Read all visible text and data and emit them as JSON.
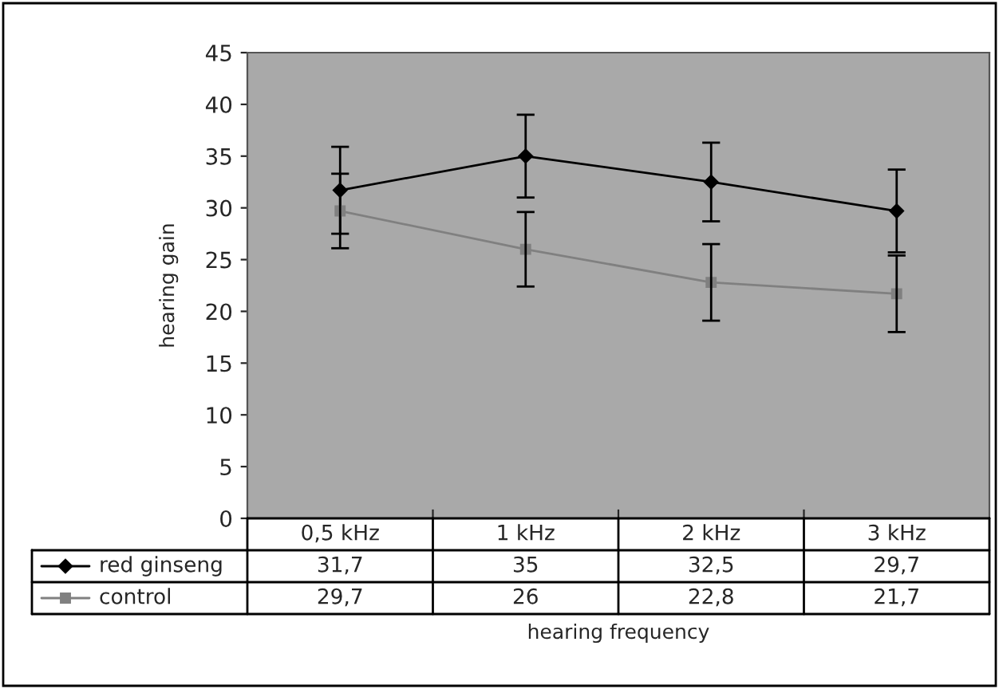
{
  "chart_data": {
    "type": "line",
    "xlabel": "hearing frequency",
    "ylabel": "hearing gain",
    "categories": [
      "0,5 kHz",
      "1 kHz",
      "2 kHz",
      "3 kHz"
    ],
    "series": [
      {
        "name": "red ginseng",
        "color": "#000000",
        "marker": "diamond",
        "values": [
          31.7,
          35,
          32.5,
          29.7
        ],
        "errors": [
          4.2,
          4,
          3.8,
          4
        ],
        "value_labels": [
          "31,7",
          "35",
          "32,5",
          "29,7"
        ]
      },
      {
        "name": "control",
        "color": "#808080",
        "marker": "square",
        "values": [
          29.7,
          26,
          22.8,
          21.7
        ],
        "errors": [
          3.6,
          3.6,
          3.7,
          3.7
        ],
        "value_labels": [
          "29,7",
          "26",
          "22,8",
          "21,7"
        ]
      }
    ],
    "ylim": [
      0,
      45
    ],
    "yticks": [
      0,
      5,
      10,
      15,
      20,
      25,
      30,
      35,
      40,
      45
    ],
    "grid": false,
    "legend": "bottom"
  }
}
